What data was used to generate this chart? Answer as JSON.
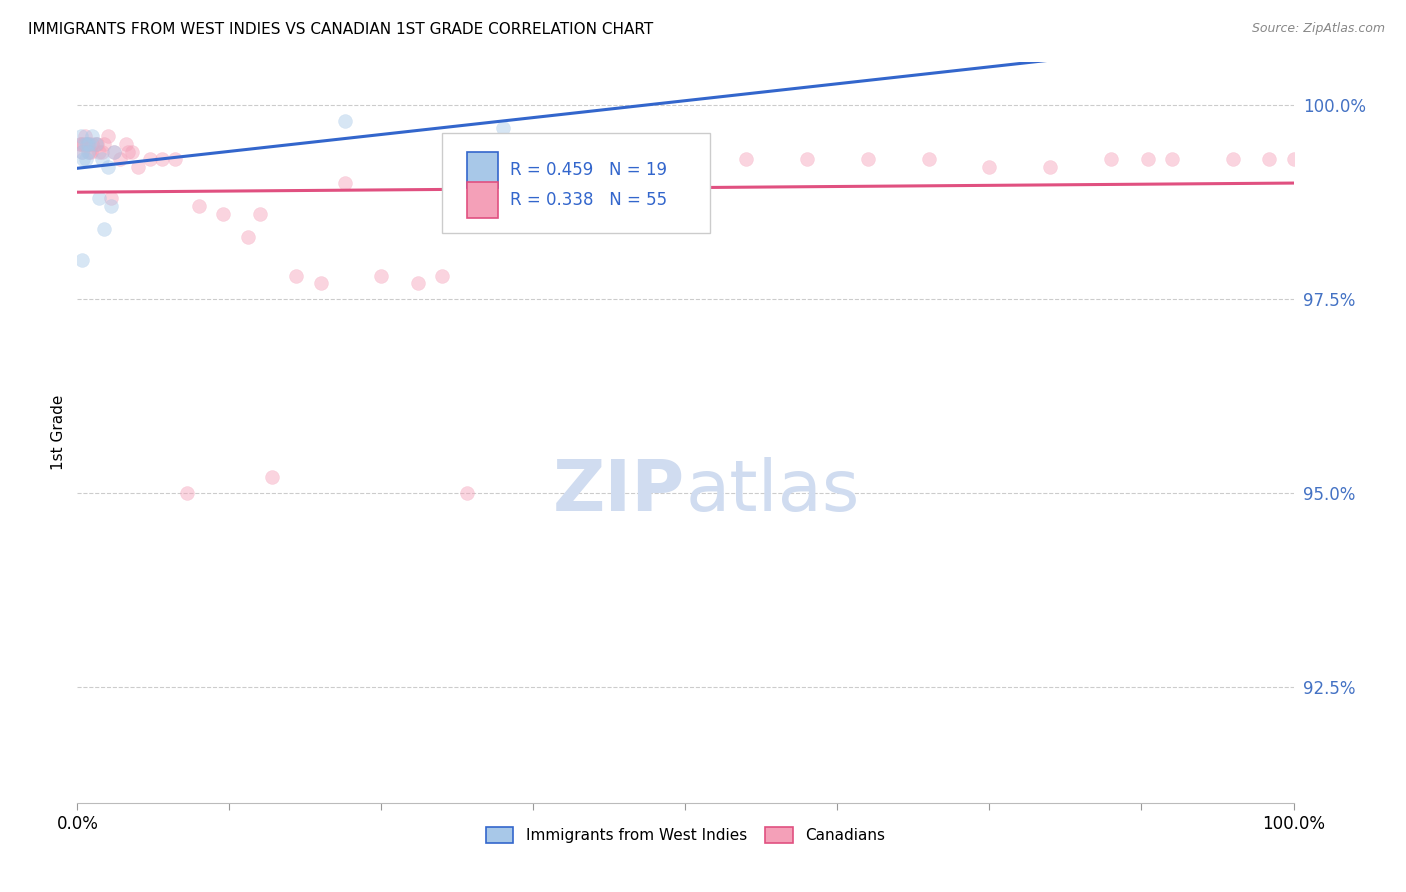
{
  "title": "IMMIGRANTS FROM WEST INDIES VS CANADIAN 1ST GRADE CORRELATION CHART",
  "source": "Source: ZipAtlas.com",
  "ylabel": "1st Grade",
  "legend_blue_text": "R = 0.459   N = 19",
  "legend_pink_text": "R = 0.338   N = 55",
  "legend_label_blue": "Immigrants from West Indies",
  "legend_label_pink": "Canadians",
  "blue_color": "#a8c8e8",
  "pink_color": "#f4a0b8",
  "blue_edge_color": "#a8c8e8",
  "pink_edge_color": "#f4a0b8",
  "blue_line_color": "#3366cc",
  "pink_line_color": "#e05080",
  "legend_text_color": "#3366cc",
  "ytick_color": "#4472c4",
  "watermark_color": "#d0dcf0",
  "grid_color": "#cccccc",
  "blue_x": [
    0.3,
    0.5,
    0.8,
    1.0,
    1.2,
    1.5,
    0.4,
    0.6,
    0.7,
    0.9,
    1.8,
    2.0,
    2.2,
    2.5,
    2.8,
    3.0,
    0.35,
    22.0,
    35.0
  ],
  "blue_y": [
    99.6,
    99.3,
    99.5,
    99.5,
    99.6,
    99.5,
    99.4,
    99.5,
    99.3,
    99.4,
    98.8,
    99.3,
    98.4,
    99.2,
    98.7,
    99.4,
    98.0,
    99.8,
    99.7
  ],
  "pink_x": [
    0.2,
    0.3,
    0.4,
    0.5,
    0.6,
    0.8,
    0.9,
    1.0,
    1.1,
    1.2,
    1.5,
    1.6,
    1.8,
    2.0,
    2.2,
    2.5,
    2.8,
    3.0,
    3.5,
    4.0,
    4.2,
    4.5,
    5.0,
    6.0,
    7.0,
    8.0,
    9.0,
    10.0,
    12.0,
    14.0,
    15.0,
    16.0,
    18.0,
    20.0,
    22.0,
    25.0,
    28.0,
    30.0,
    32.0,
    35.0,
    40.0,
    45.0,
    50.0,
    55.0,
    60.0,
    65.0,
    70.0,
    75.0,
    80.0,
    85.0,
    88.0,
    90.0,
    95.0,
    98.0,
    100.0
  ],
  "pink_y": [
    99.5,
    99.5,
    99.4,
    99.5,
    99.6,
    99.5,
    99.5,
    99.4,
    99.4,
    99.5,
    99.5,
    99.5,
    99.4,
    99.4,
    99.5,
    99.6,
    98.8,
    99.4,
    99.3,
    99.5,
    99.4,
    99.4,
    99.2,
    99.3,
    99.3,
    99.3,
    95.0,
    98.7,
    98.6,
    98.3,
    98.6,
    95.2,
    97.8,
    97.7,
    99.0,
    97.8,
    97.7,
    97.8,
    95.0,
    99.0,
    99.2,
    99.2,
    99.3,
    99.3,
    99.3,
    99.3,
    99.3,
    99.2,
    99.2,
    99.3,
    99.3,
    99.3,
    99.3,
    99.3,
    99.3
  ],
  "xmin": 0.0,
  "xmax": 100.0,
  "ymin": 91.0,
  "ymax": 100.55,
  "marker_size": 100,
  "marker_alpha": 0.45
}
